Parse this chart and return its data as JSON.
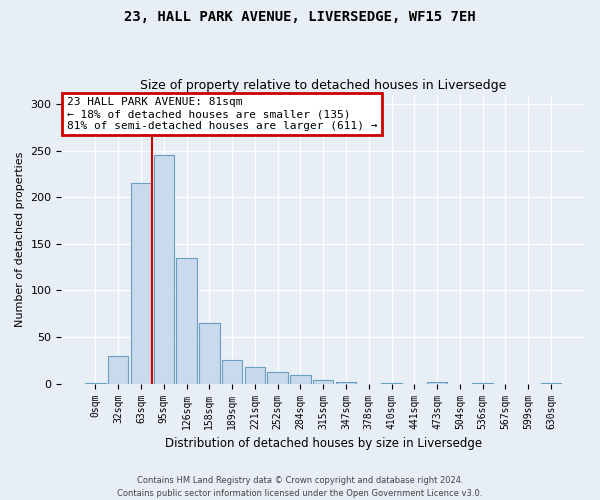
{
  "title": "23, HALL PARK AVENUE, LIVERSEDGE, WF15 7EH",
  "subtitle": "Size of property relative to detached houses in Liversedge",
  "xlabel": "Distribution of detached houses by size in Liversedge",
  "ylabel": "Number of detached properties",
  "bar_color": "#c8daeb",
  "bar_edge_color": "#6a9ec0",
  "categories": [
    "0sqm",
    "32sqm",
    "63sqm",
    "95sqm",
    "126sqm",
    "158sqm",
    "189sqm",
    "221sqm",
    "252sqm",
    "284sqm",
    "315sqm",
    "347sqm",
    "378sqm",
    "410sqm",
    "441sqm",
    "473sqm",
    "504sqm",
    "536sqm",
    "567sqm",
    "599sqm",
    "630sqm"
  ],
  "values": [
    1,
    30,
    215,
    245,
    135,
    65,
    25,
    18,
    13,
    9,
    4,
    2,
    0,
    1,
    0,
    2,
    0,
    1,
    0,
    0,
    1
  ],
  "ylim": [
    0,
    310
  ],
  "yticks": [
    0,
    50,
    100,
    150,
    200,
    250,
    300
  ],
  "red_line_x": 2.5,
  "annotation_text": "23 HALL PARK AVENUE: 81sqm\n← 18% of detached houses are smaller (135)\n81% of semi-detached houses are larger (611) →",
  "annotation_box_facecolor": "#ffffff",
  "annotation_box_edgecolor": "#cc0000",
  "footer_line1": "Contains HM Land Registry data © Crown copyright and database right 2024.",
  "footer_line2": "Contains public sector information licensed under the Open Government Licence v3.0.",
  "bg_color": "#e8eef5"
}
